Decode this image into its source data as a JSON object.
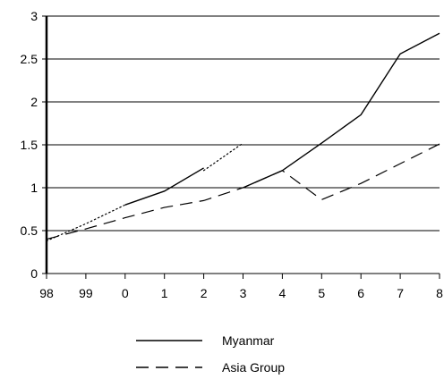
{
  "chart_data": {
    "type": "line",
    "categories": [
      "98",
      "99",
      "0",
      "1",
      "2",
      "3",
      "4",
      "5",
      "6",
      "7",
      "8"
    ],
    "series": [
      {
        "name": "Myanmar",
        "values": [
          0.38,
          null,
          0.8,
          0.96,
          1.23,
          1.0,
          1.2,
          1.52,
          1.85,
          2.56,
          2.8
        ],
        "style": "solid",
        "color": "#000000"
      },
      {
        "name": "Asia Group",
        "values": [
          0.4,
          0.52,
          0.65,
          0.77,
          0.85,
          1.0,
          1.2,
          0.86,
          1.05,
          1.28,
          1.51
        ],
        "style": "dashed",
        "color": "#000000"
      }
    ],
    "dotted_segments": [
      {
        "from": 0,
        "to": 2,
        "values": [
          0.38,
          0.58,
          0.8
        ]
      },
      {
        "from": 4,
        "to": 5,
        "values": [
          1.2,
          1.52
        ]
      }
    ],
    "ylim": [
      0,
      3
    ],
    "yticks": [
      "0",
      "0.5",
      "1",
      "1.5",
      "2",
      "2.5",
      "3"
    ],
    "grid": true,
    "legend_position": "bottom-center",
    "title": "",
    "xlabel": "",
    "ylabel": ""
  }
}
